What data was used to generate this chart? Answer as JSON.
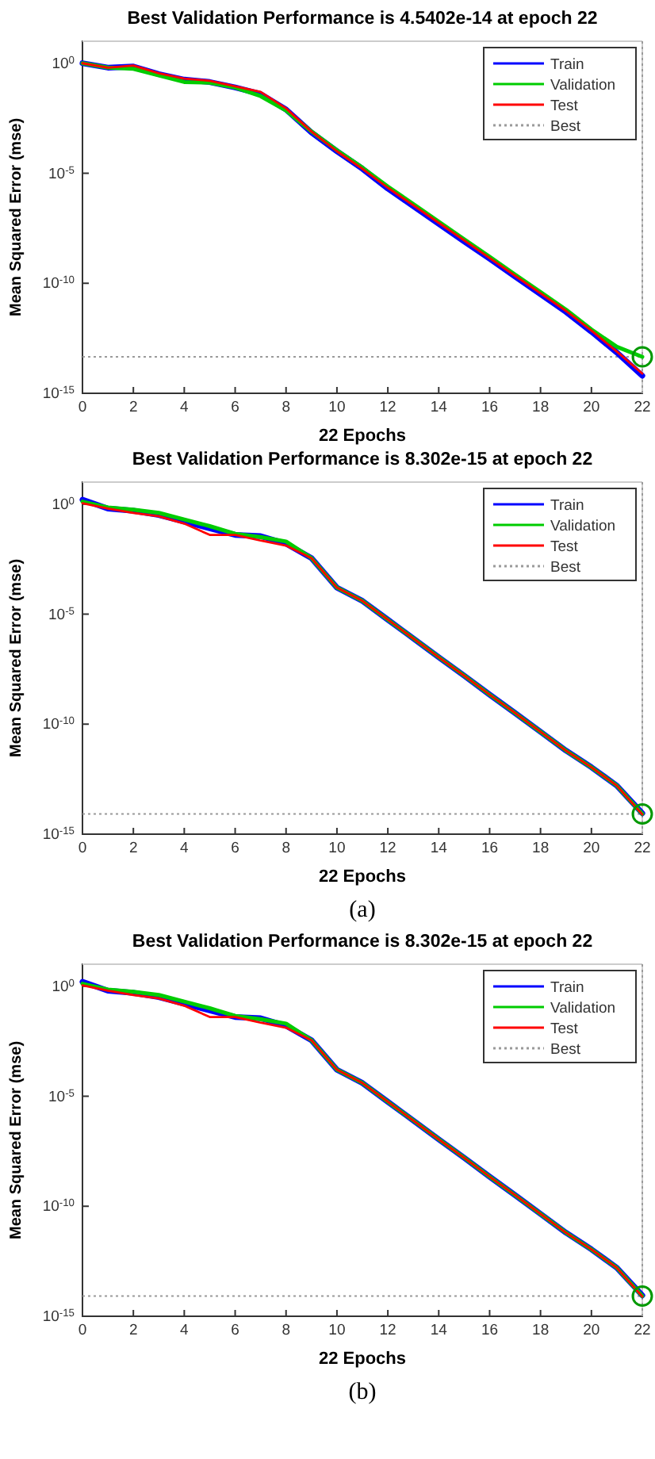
{
  "chart_data": [
    {
      "type": "line",
      "title": "Best Validation Performance is 4.5402e-14 at epoch 22",
      "xlabel": "22 Epochs",
      "ylabel": "Mean Squared Error  (mse)",
      "log": "y",
      "legend": "top right",
      "grid": false,
      "x": [
        0,
        1,
        2,
        3,
        4,
        5,
        6,
        7,
        8,
        9,
        10,
        11,
        12,
        13,
        14,
        15,
        16,
        17,
        18,
        19,
        20,
        21,
        22
      ],
      "xlim": [
        0,
        22
      ],
      "xticks": [
        0,
        2,
        4,
        6,
        8,
        10,
        12,
        14,
        16,
        18,
        20,
        22
      ],
      "ylim": [
        1e-15,
        10
      ],
      "yticks": [
        {
          "value": 1e-15,
          "label": "10$^{-15}$"
        },
        {
          "value": 1e-10,
          "label": "10$^{-10}$"
        },
        {
          "value": 1e-05,
          "label": "10$^{-5}$"
        },
        {
          "value": 1,
          "label": "10$^{0}$"
        }
      ],
      "series": [
        {
          "name": "Train",
          "color": "#0000ff",
          "values": [
            1,
            0.63,
            0.71,
            0.32,
            0.18,
            0.14,
            0.079,
            0.04,
            0.0079,
            0.00071,
            0.0001,
            1.6e-05,
            2e-06,
            3.2e-07,
            5e-08,
            7.9e-09,
            1.3e-09,
            2e-10,
            3.2e-11,
            5e-12,
            6.3e-13,
            7.1e-14,
            6.3e-15
          ]
        },
        {
          "name": "Validation",
          "color": "#00cc00",
          "values": [
            1,
            0.63,
            0.56,
            0.28,
            0.14,
            0.13,
            0.079,
            0.032,
            0.0071,
            0.00079,
            0.00011,
            1.8e-05,
            2.5e-06,
            4e-07,
            6.3e-08,
            1e-08,
            1.6e-09,
            2.5e-10,
            4e-11,
            6.3e-12,
            7.9e-13,
            1.3e-13,
            4.5402e-14
          ]
        },
        {
          "name": "Test",
          "color": "#ff0000",
          "values": [
            1,
            0.63,
            0.79,
            0.35,
            0.2,
            0.16,
            0.089,
            0.05,
            0.0089,
            0.00079,
            0.0001,
            1.6e-05,
            2.2e-06,
            3.5e-07,
            5.6e-08,
            8.9e-09,
            1.4e-09,
            2.2e-10,
            3.5e-11,
            5.6e-12,
            7.1e-13,
            7.9e-14,
            7.9e-15
          ]
        },
        {
          "type": "scatter",
          "marker": "circle",
          "color": "#009900",
          "values": [
            null,
            null,
            null,
            null,
            null,
            null,
            null,
            null,
            null,
            null,
            null,
            null,
            null,
            null,
            null,
            null,
            null,
            null,
            null,
            null,
            null,
            null,
            4.5402e-14
          ]
        }
      ],
      "ref_lines": [
        {
          "axis": "y",
          "value": 4.5402e-14,
          "label": "Best",
          "line_style": "dotted",
          "color": "#9a9a9a"
        },
        {
          "axis": "x",
          "value": 22,
          "line_style": "dotted",
          "color": "#9a9a9a"
        }
      ]
    },
    {
      "type": "line",
      "title": "Best Validation Performance is 8.302e-15 at epoch 22",
      "xlabel": "22 Epochs",
      "ylabel": "Mean Squared Error  (mse)",
      "log": "y",
      "legend": "top right",
      "grid": false,
      "annotations": [
        "(a)"
      ],
      "x": [
        0,
        1,
        2,
        3,
        4,
        5,
        6,
        7,
        8,
        9,
        10,
        11,
        12,
        13,
        14,
        15,
        16,
        17,
        18,
        19,
        20,
        21,
        22
      ],
      "xlim": [
        0,
        22
      ],
      "xticks": [
        0,
        2,
        4,
        6,
        8,
        10,
        12,
        14,
        16,
        18,
        20,
        22
      ],
      "ylim": [
        1e-15,
        10
      ],
      "yticks": [
        {
          "value": 1e-15,
          "label": "10$^{-15}$"
        },
        {
          "value": 1e-10,
          "label": "10$^{-10}$"
        },
        {
          "value": 1e-05,
          "label": "10$^{-5}$"
        },
        {
          "value": 1,
          "label": "10$^{0}$"
        }
      ],
      "series": [
        {
          "name": "Train",
          "color": "#0000ff",
          "values": [
            1.6,
            0.63,
            0.5,
            0.32,
            0.16,
            0.079,
            0.04,
            0.035,
            0.016,
            0.0035,
            0.00016,
            4e-05,
            5.6e-06,
            7.9e-07,
            1.1e-07,
            1.6e-08,
            2.2e-09,
            3.2e-10,
            4.5e-11,
            6.3e-12,
            1.1e-12,
            1.6e-13,
            8.9e-15
          ]
        },
        {
          "name": "Validation",
          "color": "#00cc00",
          "values": [
            1.3,
            0.71,
            0.56,
            0.4,
            0.2,
            0.1,
            0.045,
            0.032,
            0.02,
            0.0035,
            0.00016,
            4e-05,
            5.6e-06,
            7.9e-07,
            1.1e-07,
            1.6e-08,
            2.2e-09,
            3.2e-10,
            4.5e-11,
            6.3e-12,
            1.1e-12,
            1.6e-13,
            8.302e-15
          ]
        },
        {
          "name": "Test",
          "color": "#ff0000",
          "values": [
            1.1,
            0.63,
            0.4,
            0.28,
            0.13,
            0.04,
            0.04,
            0.022,
            0.013,
            0.0035,
            0.00016,
            4e-05,
            5.6e-06,
            7.9e-07,
            1.1e-07,
            1.6e-08,
            2.2e-09,
            3.2e-10,
            4.5e-11,
            6.3e-12,
            1.1e-12,
            1.6e-13,
            7.9e-15
          ]
        },
        {
          "type": "scatter",
          "marker": "circle",
          "color": "#009900",
          "values": [
            null,
            null,
            null,
            null,
            null,
            null,
            null,
            null,
            null,
            null,
            null,
            null,
            null,
            null,
            null,
            null,
            null,
            null,
            null,
            null,
            null,
            null,
            8.302e-15
          ]
        }
      ],
      "ref_lines": [
        {
          "axis": "y",
          "value": 8.302e-15,
          "label": "Best",
          "line_style": "dotted",
          "color": "#9a9a9a"
        },
        {
          "axis": "x",
          "value": 22,
          "line_style": "dotted",
          "color": "#9a9a9a"
        }
      ]
    },
    {
      "type": "line",
      "title": "Best Validation Performance is 8.302e-15 at epoch 22",
      "xlabel": "22 Epochs",
      "ylabel": "Mean Squared Error  (mse)",
      "log": "y",
      "legend": "top right",
      "grid": false,
      "annotations": [
        "(b)"
      ],
      "x": [
        0,
        1,
        2,
        3,
        4,
        5,
        6,
        7,
        8,
        9,
        10,
        11,
        12,
        13,
        14,
        15,
        16,
        17,
        18,
        19,
        20,
        21,
        22
      ],
      "xlim": [
        0,
        22
      ],
      "xticks": [
        0,
        2,
        4,
        6,
        8,
        10,
        12,
        14,
        16,
        18,
        20,
        22
      ],
      "ylim": [
        1e-15,
        10
      ],
      "yticks": [
        {
          "value": 1e-15,
          "label": "10$^{-15}$"
        },
        {
          "value": 1e-10,
          "label": "10$^{-10}$"
        },
        {
          "value": 1e-05,
          "label": "10$^{-5}$"
        },
        {
          "value": 1,
          "label": "10$^{0}$"
        }
      ],
      "series": [
        {
          "name": "Train",
          "color": "#0000ff",
          "values": [
            1.6,
            0.63,
            0.5,
            0.32,
            0.16,
            0.079,
            0.04,
            0.035,
            0.016,
            0.0035,
            0.00016,
            4e-05,
            5.6e-06,
            7.9e-07,
            1.1e-07,
            1.6e-08,
            2.2e-09,
            3.2e-10,
            4.5e-11,
            6.3e-12,
            1.1e-12,
            1.6e-13,
            8.9e-15
          ]
        },
        {
          "name": "Validation",
          "color": "#00cc00",
          "values": [
            1.3,
            0.71,
            0.56,
            0.4,
            0.2,
            0.1,
            0.045,
            0.032,
            0.02,
            0.0035,
            0.00016,
            4e-05,
            5.6e-06,
            7.9e-07,
            1.1e-07,
            1.6e-08,
            2.2e-09,
            3.2e-10,
            4.5e-11,
            6.3e-12,
            1.1e-12,
            1.6e-13,
            8.302e-15
          ]
        },
        {
          "name": "Test",
          "color": "#ff0000",
          "values": [
            1.1,
            0.63,
            0.4,
            0.28,
            0.13,
            0.04,
            0.04,
            0.022,
            0.013,
            0.0035,
            0.00016,
            4e-05,
            5.6e-06,
            7.9e-07,
            1.1e-07,
            1.6e-08,
            2.2e-09,
            3.2e-10,
            4.5e-11,
            6.3e-12,
            1.1e-12,
            1.6e-13,
            7.9e-15
          ]
        },
        {
          "type": "scatter",
          "marker": "circle",
          "color": "#009900",
          "values": [
            null,
            null,
            null,
            null,
            null,
            null,
            null,
            null,
            null,
            null,
            null,
            null,
            null,
            null,
            null,
            null,
            null,
            null,
            null,
            null,
            null,
            null,
            8.302e-15
          ]
        }
      ],
      "ref_lines": [
        {
          "axis": "y",
          "value": 8.302e-15,
          "label": "Best",
          "line_style": "dotted",
          "color": "#9a9a9a"
        },
        {
          "axis": "x",
          "value": 22,
          "line_style": "dotted",
          "color": "#9a9a9a"
        }
      ]
    }
  ]
}
